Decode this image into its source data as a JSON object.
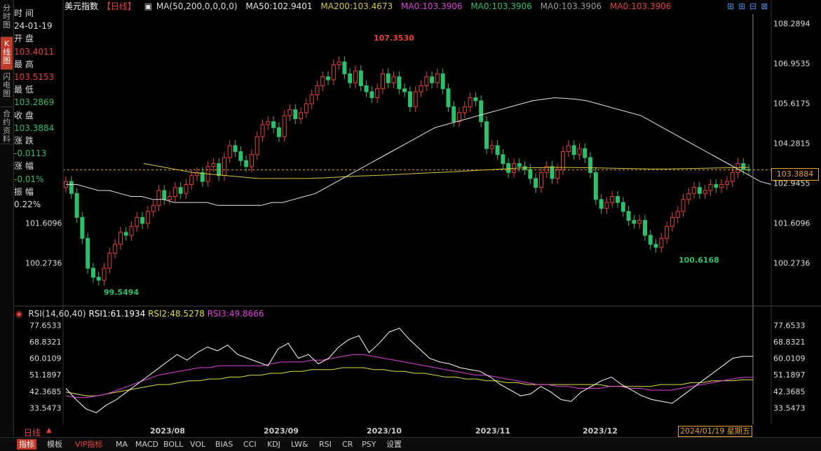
{
  "left_tabs": [
    {
      "label": "分时图",
      "active": false
    },
    {
      "label": "K线图",
      "active": true
    },
    {
      "label": "闪电图",
      "active": false
    },
    {
      "label": "合约资料",
      "active": false
    }
  ],
  "info_panel": {
    "time_label": "时 间",
    "time_value": "24-01-19",
    "open_label": "开 盘",
    "open_value": "103.4011",
    "high_label": "最 高",
    "high_value": "103.5153",
    "low_label": "最 低",
    "low_value": "103.2869",
    "close_label": "收 盘",
    "close_value": "103.3884",
    "change_label": "涨 跌",
    "change_value": "-0.0113",
    "pct_label": "涨 幅",
    "pct_value": "-0.01%",
    "amp_label": "振 幅",
    "amp_value": "0.22%"
  },
  "header": {
    "title": "美元指数",
    "period": "【日线】",
    "ma_config": "MA(50,200,0,0,0,0)",
    "ma50": "MA50:102.9401",
    "ma200": "MA200:103.4673",
    "ma0_a": "MA0:103.3906",
    "ma0_b": "MA0:103.3906",
    "ma0_c": "MA0:103.3906",
    "ma0_d": "MA0:103.3906"
  },
  "colors": {
    "up": "#e8413a",
    "down": "#2fbf6a",
    "ma50": "#e6e6e6",
    "ma200": "#d6c640",
    "rsi1": "#ffffff",
    "rsi2": "#e0e040",
    "rsi3": "#e040e0",
    "dash": "#e8a030"
  },
  "price_axis": {
    "ticks": [
      "108.2894",
      "106.9535",
      "105.6175",
      "104.2815",
      "102.9455",
      "101.6096",
      "100.2736"
    ],
    "current": "103.3884",
    "ylim": [
      99.0,
      108.6
    ]
  },
  "annotations": {
    "high": "107.3530",
    "low_left": "99.5494",
    "low_right": "100.6168"
  },
  "rsi_header": {
    "config": "RSI(14,60,40)",
    "rsi1": "RSI1:61.1934",
    "rsi2": "RSI2:48.5278",
    "rsi3": "RSI3:49.8666"
  },
  "rsi_axis": {
    "ticks": [
      "77.6533",
      "68.8321",
      "60.0109",
      "51.1897",
      "42.3685",
      "33.5473"
    ],
    "ylim": [
      27,
      80
    ]
  },
  "x_axis": {
    "labels": [
      "2023/08",
      "2023/09",
      "2023/10",
      "2023/11",
      "2023/12"
    ],
    "cursor_date": "2024/01/19 星期五"
  },
  "period_label": "日线",
  "bottom_tabs": [
    "指标",
    "模板",
    "VIP指标",
    "MA",
    "MACD",
    "BOLL",
    "VOL",
    "BIAS",
    "CCI",
    "KDJ",
    "LW&",
    "RSI",
    "CR",
    "PSY",
    "设置"
  ],
  "chart_data": {
    "type": "candlestick",
    "closes": [
      103.0,
      102.6,
      101.8,
      101.1,
      100.1,
      99.8,
      99.7,
      100.1,
      100.6,
      100.9,
      101.3,
      101.2,
      101.5,
      101.8,
      101.6,
      102.0,
      102.2,
      102.7,
      102.4,
      102.5,
      102.8,
      102.6,
      102.9,
      103.2,
      103.3,
      103.0,
      103.5,
      103.6,
      103.2,
      103.8,
      104.2,
      104.0,
      103.7,
      103.5,
      103.9,
      104.5,
      104.9,
      105.0,
      104.8,
      104.5,
      105.2,
      105.4,
      105.1,
      105.3,
      105.6,
      105.9,
      106.2,
      106.5,
      106.4,
      106.9,
      107.0,
      106.6,
      106.3,
      106.7,
      106.2,
      106.0,
      105.8,
      106.1,
      106.6,
      106.3,
      106.5,
      106.1,
      106.0,
      105.5,
      106.0,
      106.2,
      106.5,
      106.3,
      106.6,
      106.1,
      105.5,
      105.0,
      105.3,
      105.5,
      105.8,
      105.7,
      105.0,
      104.1,
      104.2,
      103.9,
      103.6,
      103.3,
      103.6,
      103.5,
      103.4,
      103.1,
      102.8,
      103.3,
      103.5,
      103.1,
      103.4,
      104.0,
      104.2,
      103.9,
      104.1,
      103.8,
      103.3,
      102.4,
      102.1,
      102.3,
      102.5,
      102.3,
      102.0,
      101.7,
      101.6,
      101.7,
      101.2,
      100.9,
      100.8,
      101.1,
      101.5,
      101.8,
      102.0,
      102.4,
      102.6,
      102.8,
      102.6,
      102.7,
      102.9,
      102.8,
      102.9,
      103.0,
      103.3,
      103.6,
      103.4,
      103.39
    ],
    "ma50": [
      102.9,
      102.9,
      102.8,
      102.7,
      102.7,
      102.6,
      102.5,
      102.5,
      102.4,
      102.4,
      102.3,
      102.3,
      102.3,
      102.3,
      102.2,
      102.2,
      102.2,
      102.2,
      102.2,
      102.3,
      102.3,
      102.4,
      102.5,
      102.6,
      102.8,
      103.0,
      103.2,
      103.4,
      103.6,
      103.8,
      104.0,
      104.2,
      104.4,
      104.6,
      104.8,
      104.9,
      105.0,
      105.1,
      105.2,
      105.3,
      105.4,
      105.5,
      105.6,
      105.7,
      105.75,
      105.8,
      105.78,
      105.75,
      105.7,
      105.6,
      105.5,
      105.4,
      105.3,
      105.2,
      105.0,
      104.8,
      104.6,
      104.4,
      104.2,
      104.0,
      103.8,
      103.6,
      103.4,
      103.2,
      103.0,
      102.9
    ],
    "ma200": [
      103.6,
      103.5,
      103.4,
      103.3,
      103.25,
      103.2,
      103.15,
      103.1,
      103.1,
      103.1,
      103.1,
      103.12,
      103.15,
      103.18,
      103.2,
      103.22,
      103.25,
      103.28,
      103.3,
      103.33,
      103.36,
      103.39,
      103.42,
      103.45,
      103.46,
      103.47,
      103.47,
      103.46,
      103.45,
      103.44,
      103.43,
      103.42,
      103.42,
      103.43,
      103.44,
      103.45,
      103.46,
      103.47
    ],
    "rsi1": [
      44,
      38,
      33,
      31,
      35,
      38,
      42,
      46,
      50,
      54,
      58,
      62,
      59,
      63,
      66,
      64,
      67,
      62,
      60,
      58,
      56,
      65,
      68,
      60,
      62,
      57,
      60,
      66,
      70,
      72,
      63,
      68,
      74,
      76,
      70,
      65,
      60,
      58,
      57,
      55,
      54,
      53,
      50,
      46,
      43,
      40,
      41,
      45,
      42,
      38,
      37,
      42,
      45,
      48,
      50,
      46,
      43,
      40,
      38,
      37,
      36,
      40,
      44,
      48,
      52,
      56,
      60,
      61,
      61
    ],
    "rsi2": [
      42,
      41,
      40,
      40,
      41,
      42,
      43,
      44,
      45,
      46,
      46,
      47,
      48,
      48,
      49,
      49,
      50,
      50,
      51,
      51,
      52,
      52,
      53,
      53,
      54,
      54,
      54,
      55,
      55,
      55,
      54,
      54,
      53,
      53,
      52,
      52,
      51,
      50,
      50,
      49,
      49,
      48,
      48,
      47,
      47,
      46,
      46,
      46,
      46,
      46,
      46,
      46,
      46,
      45,
      45,
      45,
      45,
      45,
      46,
      46,
      46,
      47,
      47,
      48,
      48,
      48,
      48.5,
      48.5
    ],
    "rsi3": [
      40,
      39,
      39,
      40,
      41,
      43,
      45,
      47,
      49,
      51,
      52,
      53,
      54,
      55,
      55,
      56,
      56,
      56,
      56,
      56,
      57,
      58,
      58,
      58,
      59,
      59,
      60,
      61,
      62,
      62,
      61,
      60,
      59,
      58,
      57,
      56,
      55,
      54,
      53,
      52,
      51,
      51,
      50,
      49,
      48,
      47,
      46,
      46,
      45,
      45,
      44,
      44,
      44,
      45,
      45,
      44,
      44,
      43,
      43,
      43,
      44,
      45,
      46,
      47,
      48,
      49,
      49.8,
      49.9
    ]
  }
}
